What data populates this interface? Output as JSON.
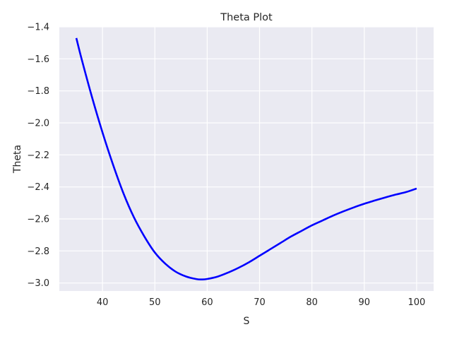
{
  "chart_data": {
    "type": "line",
    "title": "Theta Plot",
    "xlabel": "S",
    "ylabel": "Theta",
    "xlim": [
      31.75,
      103.25
    ],
    "ylim": [
      -3.05,
      -1.4
    ],
    "xticks": [
      40,
      50,
      60,
      70,
      80,
      90,
      100
    ],
    "yticks": [
      -3.0,
      -2.8,
      -2.6,
      -2.4,
      -2.2,
      -2.0,
      -1.8,
      -1.6,
      -1.4
    ],
    "grid": true,
    "legend": "none",
    "series": [
      {
        "color": "#0000ff",
        "x": [
          35,
          36,
          38,
          40,
          42,
          44,
          46,
          48,
          50,
          52,
          54,
          56,
          58,
          59,
          60,
          62,
          64,
          66,
          68,
          70,
          72,
          74,
          76,
          78,
          80,
          82,
          84,
          86,
          88,
          90,
          92,
          94,
          96,
          98,
          100
        ],
        "y": [
          -1.47,
          -1.6,
          -1.84,
          -2.06,
          -2.26,
          -2.44,
          -2.59,
          -2.71,
          -2.81,
          -2.88,
          -2.93,
          -2.96,
          -2.976,
          -2.978,
          -2.975,
          -2.96,
          -2.935,
          -2.905,
          -2.87,
          -2.83,
          -2.79,
          -2.75,
          -2.71,
          -2.675,
          -2.64,
          -2.61,
          -2.58,
          -2.553,
          -2.528,
          -2.505,
          -2.485,
          -2.466,
          -2.448,
          -2.432,
          -2.41
        ]
      }
    ],
    "colors": {
      "background": "#eaeaf2",
      "grid": "#ffffff",
      "text": "#262626"
    }
  }
}
